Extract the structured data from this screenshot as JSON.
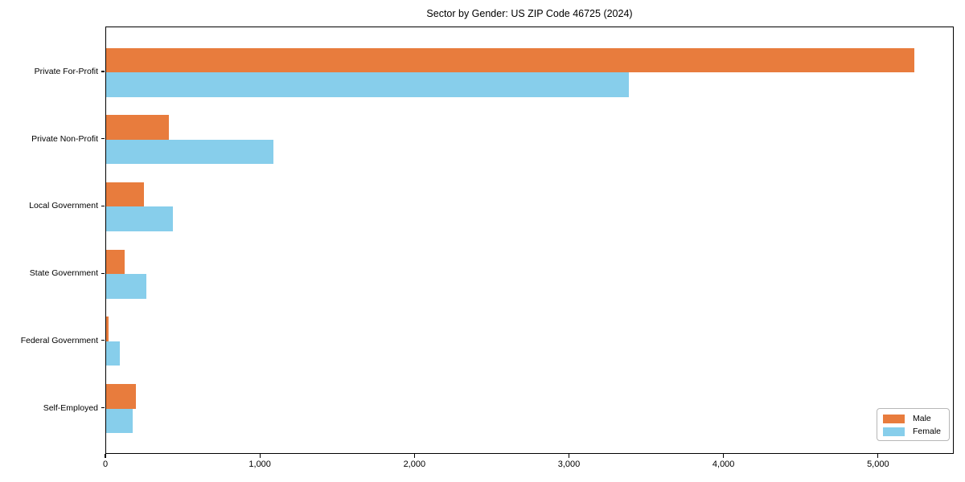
{
  "title": "Sector by Gender: US ZIP Code 46725 (2024)",
  "chart_data": {
    "type": "bar",
    "orientation": "horizontal",
    "title": "Sector by Gender: US ZIP Code 46725 (2024)",
    "xlabel": "",
    "ylabel": "",
    "categories": [
      "Private For-Profit",
      "Private Non-Profit",
      "Local Government",
      "State Government",
      "Federal Government",
      "Self-Employed"
    ],
    "series": [
      {
        "name": "Male",
        "color": "#e87c3d",
        "values": [
          5230,
          405,
          245,
          120,
          13,
          190
        ]
      },
      {
        "name": "Female",
        "color": "#87ceeb",
        "values": [
          3380,
          1080,
          430,
          260,
          90,
          170
        ]
      }
    ],
    "xlim": [
      0,
      5490
    ],
    "xticks": [
      0,
      1000,
      2000,
      3000,
      4000,
      5000
    ],
    "xtick_labels": [
      "0",
      "1,000",
      "2,000",
      "3,000",
      "4,000",
      "5,000"
    ],
    "grid": false,
    "legend": {
      "position": "lower right",
      "entries": [
        "Male",
        "Female"
      ]
    },
    "axis_color": "#000000"
  }
}
